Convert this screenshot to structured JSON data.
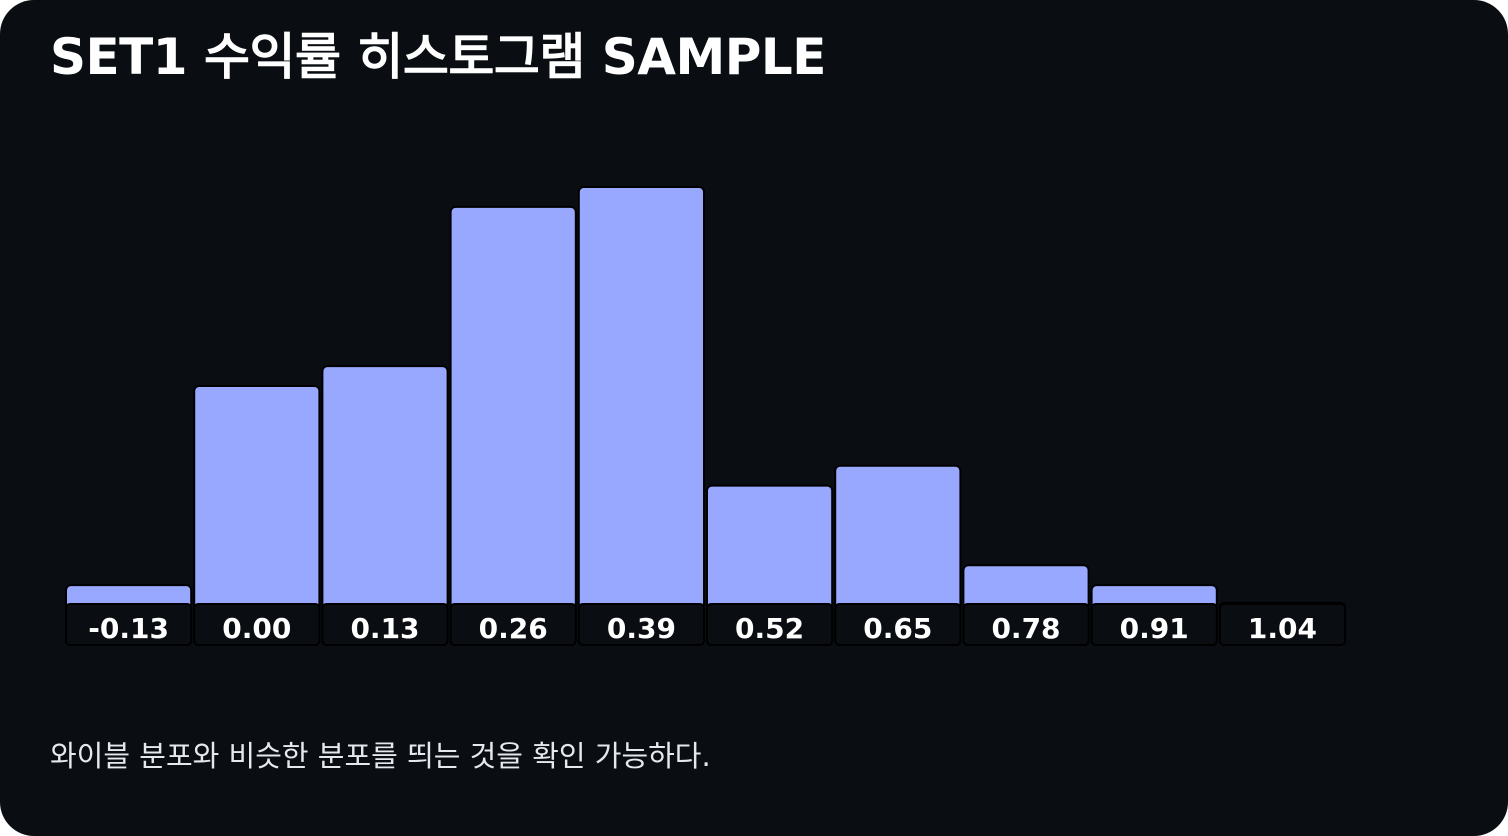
{
  "title": "SET1 수익률 히스토그램 SAMPLE",
  "caption": "와이블 분포와 비슷한 분포를 띄는 것을 확인 가능하다.",
  "colors": {
    "background": "#0a0e12",
    "bar_fill": "#99a8ff",
    "bar_stroke": "#000000",
    "label_box": "#0a0e12",
    "text": "#ffffff"
  },
  "chart_data": {
    "type": "bar",
    "categories": [
      "-0.13",
      "0.00",
      "0.13",
      "0.26",
      "0.39",
      "0.52",
      "0.65",
      "0.78",
      "0.91",
      "1.04"
    ],
    "values": [
      1,
      11,
      12,
      20,
      21,
      6,
      7,
      2,
      1,
      0.1
    ],
    "ylim": [
      0,
      21
    ],
    "grid": false,
    "legend": "none"
  }
}
